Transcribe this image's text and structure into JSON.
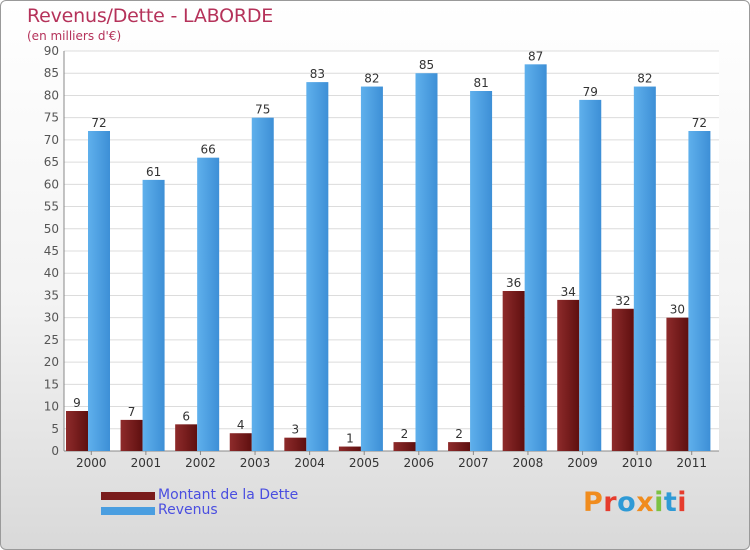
{
  "chart_data": {
    "type": "bar",
    "title": "Revenus/Dette - LABORDE",
    "subtitle": "(en milliers d'€)",
    "categories": [
      "2000",
      "2001",
      "2002",
      "2003",
      "2004",
      "2005",
      "2006",
      "2007",
      "2008",
      "2009",
      "2010",
      "2011"
    ],
    "series": [
      {
        "name": "Montant de la Dette",
        "color": "#7a1c1c",
        "values": [
          9,
          7,
          6,
          4,
          3,
          1,
          2,
          2,
          36,
          34,
          32,
          30
        ]
      },
      {
        "name": "Revenus",
        "color": "#4a9ee0",
        "values": [
          72,
          61,
          66,
          75,
          83,
          82,
          85,
          81,
          87,
          79,
          82,
          72
        ]
      }
    ],
    "ylim": [
      0,
      90
    ],
    "yticks": [
      0,
      5,
      10,
      15,
      20,
      25,
      30,
      35,
      40,
      45,
      50,
      55,
      60,
      65,
      70,
      75,
      80,
      85,
      90
    ],
    "grid": true,
    "legend_position": "bottom-left"
  },
  "brand": {
    "logo_text": "Proxiti",
    "logo_colors": [
      "#f08c1e",
      "#e63c2d",
      "#2e9ad6",
      "#f08c1e",
      "#7cc242",
      "#2e9ad6",
      "#e63c2d"
    ]
  }
}
